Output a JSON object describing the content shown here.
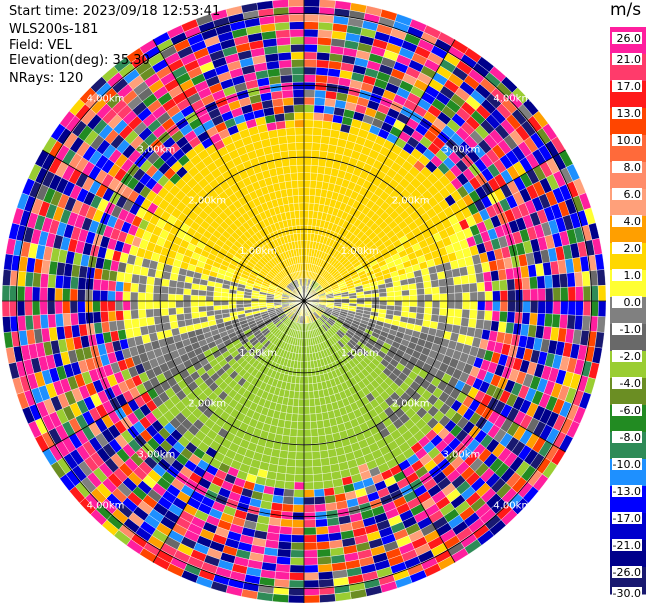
{
  "header": {
    "start_time": "Start time: 2023/09/18 12:53:41",
    "site": "WLS200s-181",
    "field": "Field: VEL",
    "elevation": "Elevation(deg): 35.30",
    "nrays": "NRays: 120"
  },
  "colorbar": {
    "unit": "m/s",
    "ticks": [
      "26.0",
      "21.0",
      "17.0",
      "13.0",
      "10.0",
      "8.0",
      "6.0",
      "4.0",
      "2.0",
      "1.0",
      "0.0",
      "-1.0",
      "-2.0",
      "-4.0",
      "-6.0",
      "-8.0",
      "-10.0",
      "-13.0",
      "-17.0",
      "-21.0",
      "-26.0",
      "-30.0"
    ],
    "colors": [
      "#ff1f9e",
      "#ff3b6b",
      "#ff1a1a",
      "#ff4500",
      "#ff6a3a",
      "#ff8c69",
      "#ffa07a",
      "#ff9f00",
      "#ffd700",
      "#ffff33",
      "#808080",
      "#696969",
      "#9acd32",
      "#6b8e23",
      "#228b22",
      "#2e8b57",
      "#1e90ff",
      "#0000ff",
      "#0000cd",
      "#00008b",
      "#191970"
    ]
  },
  "chart_data": {
    "type": "radar-ppi",
    "field": "VEL",
    "nrays": 120,
    "elevation_deg": 35.3,
    "range_ring_labels": [
      "1.00km",
      "2.00km",
      "3.00km",
      "4.00km"
    ],
    "range_rings_km": [
      1.0,
      2.0,
      3.0,
      4.0
    ],
    "spoke_angles_deg": [
      0,
      30,
      60,
      90,
      120,
      150,
      180,
      210,
      240,
      270,
      300,
      330
    ],
    "max_range_km": 4.2,
    "valid_data_range_km": 2.55,
    "vmin": -30.0,
    "vmax": 30.0,
    "pattern": "Yellow (+1 to +2 m/s) north half, olive/green (-2 to -4 m/s) south half, gray near-zero band along the east-west axis; noisy multicolor returns beyond ~2.5 km"
  }
}
